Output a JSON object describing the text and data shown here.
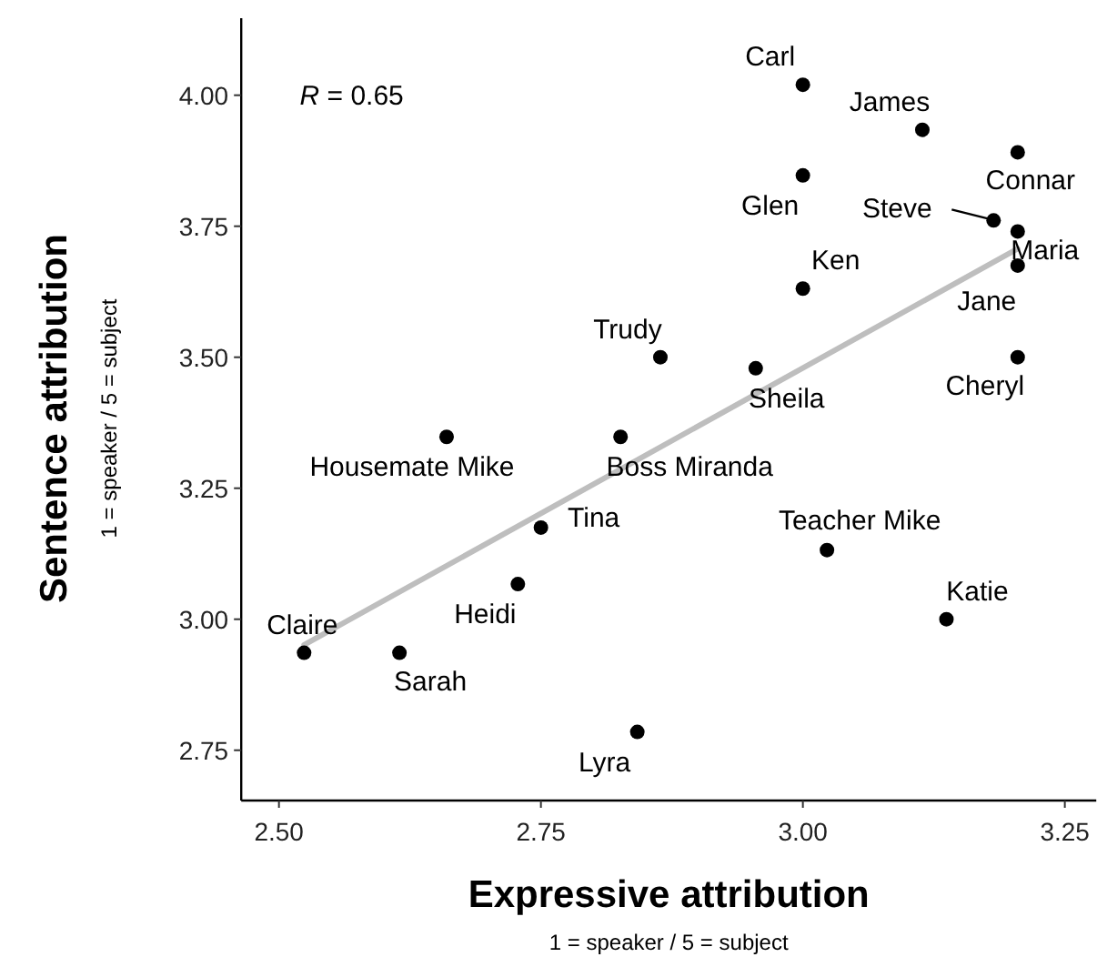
{
  "chart_data": {
    "type": "scatter",
    "xlabel": "Expressive attribution",
    "ylabel": "Sentence attribution",
    "xlim": [
      2.464,
      3.28
    ],
    "ylim": [
      2.654,
      4.147
    ],
    "xticks": [
      {
        "value": 2.5,
        "label": "2.50"
      },
      {
        "value": 2.75,
        "label": "2.75"
      },
      {
        "value": 3,
        "label": "3.00"
      },
      {
        "value": 3.25,
        "label": "3.25"
      }
    ],
    "yticks": [
      {
        "value": 2.75,
        "label": "2.75"
      },
      {
        "value": 3,
        "label": "3.00"
      },
      {
        "value": 3.25,
        "label": "3.25"
      },
      {
        "value": 3.5,
        "label": "3.50"
      },
      {
        "value": 3.75,
        "label": "3.75"
      },
      {
        "value": 4,
        "label": "4.00"
      }
    ],
    "grid": false,
    "marker": "circle",
    "series": [
      {
        "type": "line",
        "marker": "none",
        "color": "#bebebe",
        "x": [
          2.524,
          3.205
        ],
        "values": [
          2.951,
          3.707
        ]
      },
      {
        "color": "#000000",
        "x": [
          3.0,
          3.114,
          3.205,
          3.0,
          3.182,
          3.205,
          3.205,
          3.0,
          2.864,
          2.955,
          3.205,
          2.66,
          2.826,
          2.75,
          3.023,
          2.728,
          3.137,
          2.524,
          2.615,
          2.842
        ],
        "values": [
          4.02,
          3.934,
          3.891,
          3.847,
          3.761,
          3.74,
          3.675,
          3.631,
          3.5,
          3.479,
          3.5,
          3.348,
          3.348,
          3.175,
          3.132,
          3.067,
          3.0,
          2.936,
          2.936,
          2.785
        ]
      }
    ],
    "annotations": [
      "R = 0.65",
      "1 = speaker / 5 = subject",
      "1 = speaker / 5 = subject",
      {
        "text": "Carl",
        "x": 3.0,
        "y": 4.02
      },
      {
        "text": "James",
        "x": 3.114,
        "y": 3.934
      },
      {
        "text": "Connar",
        "x": 3.205,
        "y": 3.891
      },
      {
        "text": "Glen",
        "x": 3.0,
        "y": 3.847
      },
      {
        "text": "Steve",
        "x": 3.182,
        "y": 3.761
      },
      {
        "text": "Maria",
        "x": 3.205,
        "y": 3.74
      },
      {
        "text": "Jane",
        "x": 3.205,
        "y": 3.675
      },
      {
        "text": "Ken",
        "x": 3.0,
        "y": 3.631
      },
      {
        "text": "Trudy",
        "x": 2.864,
        "y": 3.5
      },
      {
        "text": "Sheila",
        "x": 2.955,
        "y": 3.479
      },
      {
        "text": "Cheryl",
        "x": 3.205,
        "y": 3.5
      },
      {
        "text": "Housemate Mike",
        "x": 2.66,
        "y": 3.348
      },
      {
        "text": "Boss Miranda",
        "x": 2.826,
        "y": 3.348
      },
      {
        "text": "Tina",
        "x": 2.75,
        "y": 3.175
      },
      {
        "text": "Teacher Mike",
        "x": 3.023,
        "y": 3.132
      },
      {
        "text": "Heidi",
        "x": 2.728,
        "y": 3.067
      },
      {
        "text": "Katie",
        "x": 3.137,
        "y": 3.0
      },
      {
        "text": "Claire",
        "x": 2.524,
        "y": 2.936
      },
      {
        "text": "Sarah",
        "x": 2.615,
        "y": 2.936
      },
      {
        "text": "Lyra",
        "x": 2.842,
        "y": 2.785
      }
    ]
  }
}
